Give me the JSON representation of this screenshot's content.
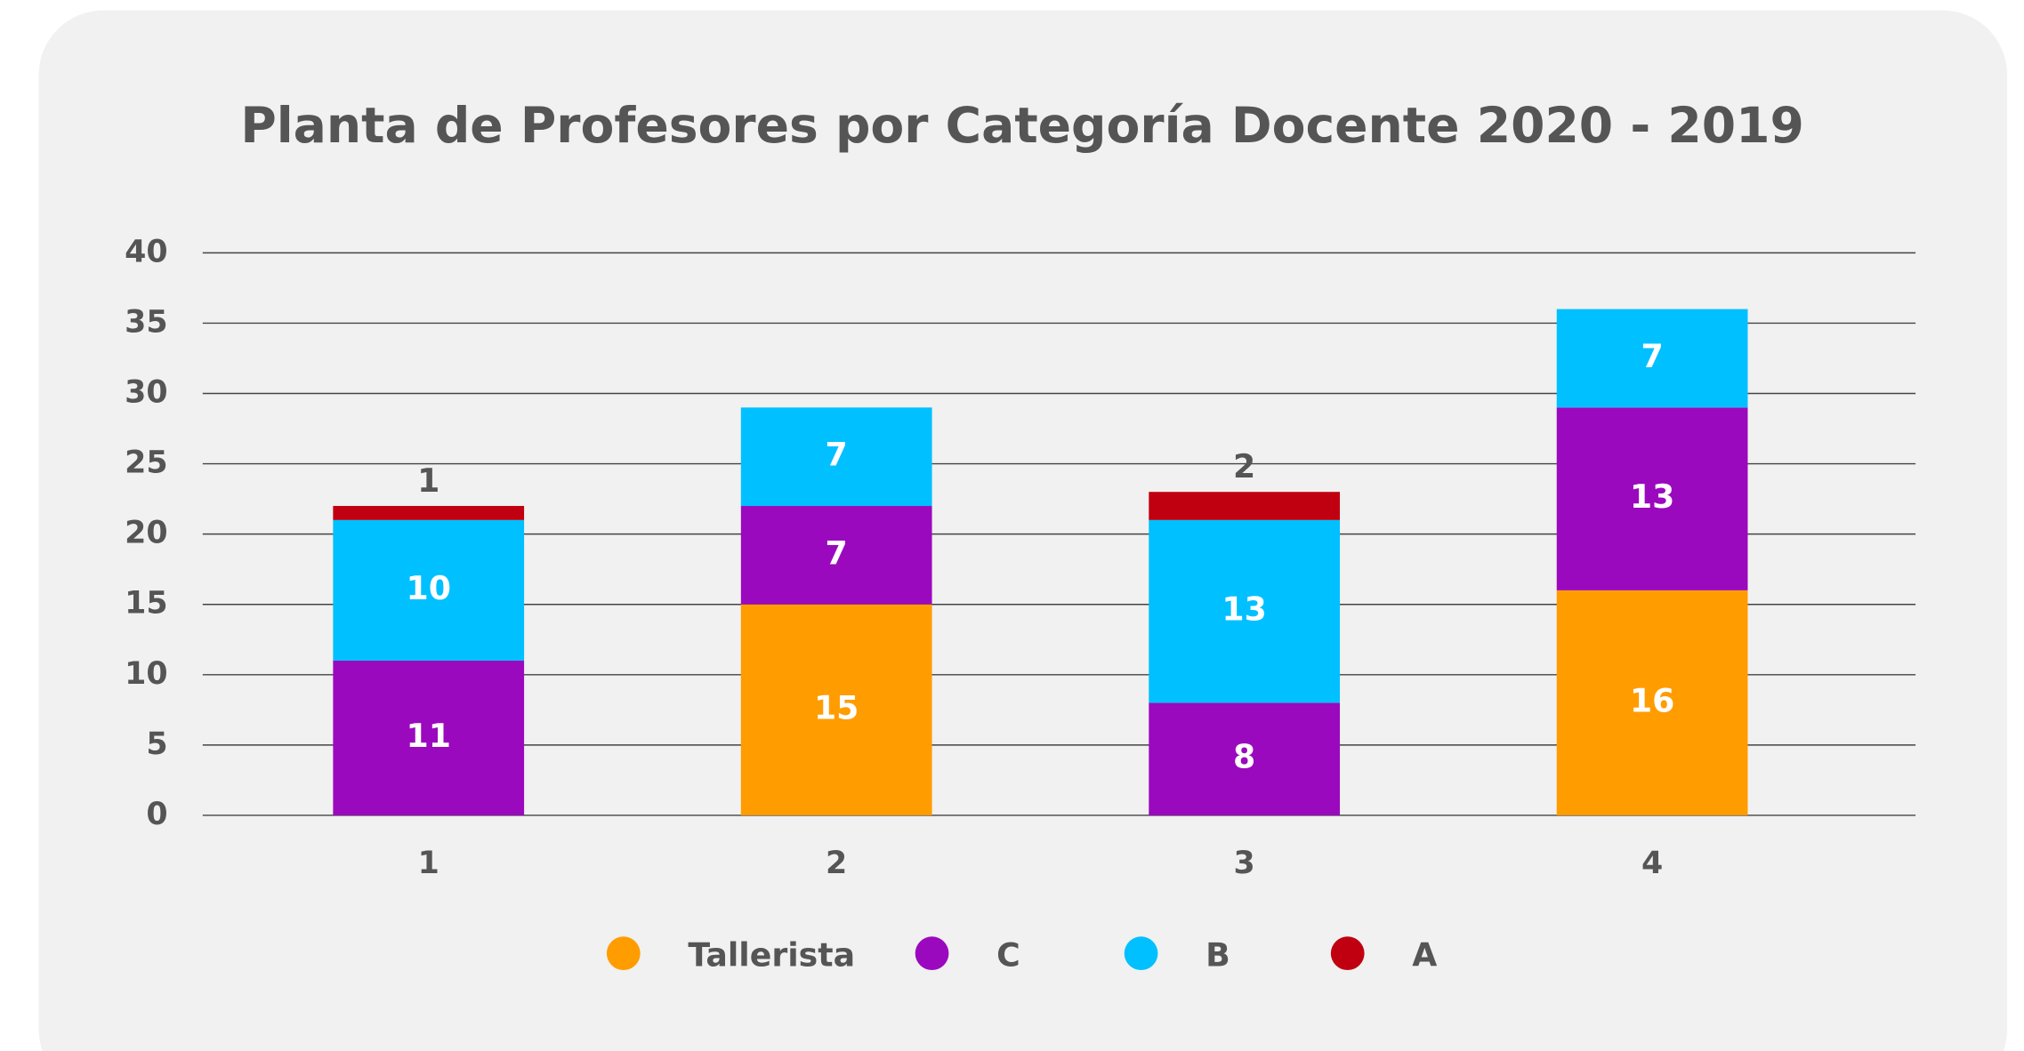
{
  "chart_data": {
    "type": "bar",
    "stacked": true,
    "title": "Planta de Profesores por Categoría Docente 2020 - 2019",
    "categories": [
      "1",
      "2",
      "3",
      "4"
    ],
    "series": [
      {
        "name": "Tallerista",
        "color": "#ff9c00",
        "values": [
          null,
          15,
          null,
          16
        ]
      },
      {
        "name": "C",
        "color": "#9b09be",
        "values": [
          11,
          7,
          8,
          13
        ]
      },
      {
        "name": "B",
        "color": "#00c0ff",
        "values": [
          10,
          7,
          13,
          7
        ]
      },
      {
        "name": "A",
        "color": "#c00010",
        "values": [
          1,
          null,
          2,
          null
        ]
      }
    ],
    "ylim": [
      0,
      40
    ],
    "yticks": [
      0,
      5,
      10,
      15,
      20,
      25,
      30,
      35,
      40
    ],
    "grid": true,
    "legend": "bottom"
  }
}
